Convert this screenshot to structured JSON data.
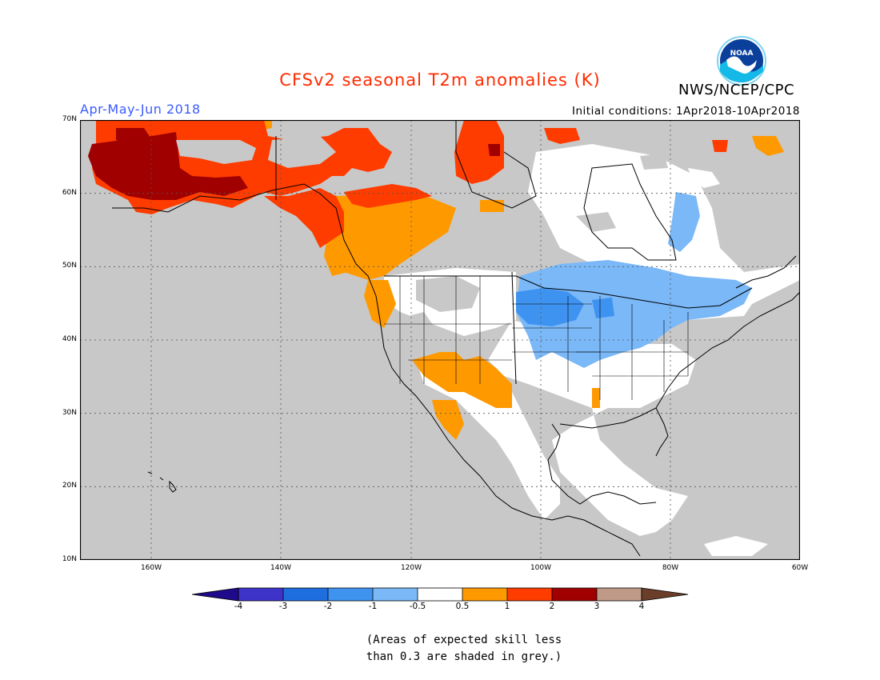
{
  "title": "CFSv2 seasonal T2m anomalies (K)",
  "agency": "NWS/NCEP/CPC",
  "logo_text": "NOAA",
  "period": "Apr-May-Jun 2018",
  "initial_conditions": "Initial conditions: 1Apr2018-10Apr2018",
  "map": {
    "lat_labels": [
      "70N",
      "60N",
      "50N",
      "40N",
      "30N",
      "20N",
      "10N"
    ],
    "lon_labels": [
      "160W",
      "140W",
      "120W",
      "100W",
      "80W",
      "60W"
    ],
    "lat_range": [
      10,
      70
    ],
    "lon_range": [
      -171,
      -60
    ],
    "grey_meaning": "skill < 0.3"
  },
  "colorbar": {
    "labels": [
      "-4",
      "-3",
      "-2",
      "-1",
      "-0.5",
      "0.5",
      "1",
      "2",
      "3",
      "4"
    ],
    "colors": [
      "#1f0a8c",
      "#3e33c8",
      "#1f6ee0",
      "#3f93f0",
      "#7ab8f8",
      "#ffffff",
      "#ff9900",
      "#ff3c00",
      "#a00000",
      "#c09a88",
      "#6b3e2a"
    ]
  },
  "note": {
    "line1": "(Areas of expected skill less",
    "line2": "than 0.3 are shaded in grey.)"
  },
  "colors": {
    "land_grey": "#c8c8c8",
    "ocean_grey": "#c8c8c8",
    "title_red": "#ff2a00",
    "period_blue": "#3b5bff"
  }
}
